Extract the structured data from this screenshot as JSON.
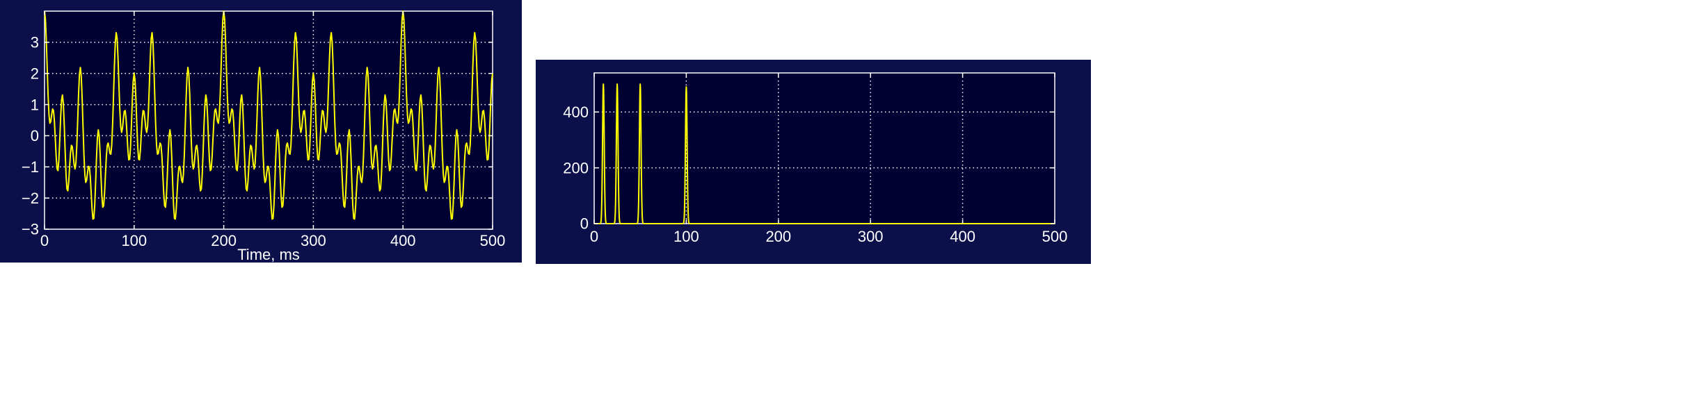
{
  "theme": {
    "figure_bg": "#0b0f4a",
    "axes_bg": "#000033",
    "line_color": "#ffff00",
    "grid_color": "#ffffff",
    "text_color": "#ffffff",
    "page_bg": "#ffffff"
  },
  "chart_data": [
    {
      "type": "line",
      "title": "",
      "xlabel": "Time, ms",
      "ylabel": "",
      "xlim": [
        0,
        500
      ],
      "ylim": [
        -3,
        4
      ],
      "grid": true,
      "x_ticks": [
        0,
        100,
        200,
        300,
        400,
        500
      ],
      "y_ticks": [
        -3,
        -2,
        -1,
        0,
        1,
        2,
        3
      ],
      "x_tick_labels": [
        "0",
        "100",
        "200",
        "300",
        "400",
        "500"
      ],
      "y_tick_labels": [
        "−3",
        "−2",
        "−1",
        "0",
        "1",
        "2",
        "3"
      ],
      "series": [
        {
          "components": [
            {
              "frequency_hz": 10,
              "amplitude": 1
            },
            {
              "frequency_hz": 25,
              "amplitude": 1
            },
            {
              "frequency_hz": 50,
              "amplitude": 1
            },
            {
              "frequency_hz": 100,
              "amplitude": 1
            }
          ],
          "sample_step_ms": 1
        }
      ]
    },
    {
      "type": "line",
      "title": "",
      "xlabel": "",
      "ylabel": "",
      "xlim": [
        0,
        500
      ],
      "ylim": [
        0,
        540
      ],
      "grid": true,
      "x_ticks": [
        0,
        100,
        200,
        300,
        400,
        500
      ],
      "y_ticks": [
        0,
        200,
        400
      ],
      "x_tick_labels": [
        "0",
        "100",
        "200",
        "300",
        "400",
        "500"
      ],
      "y_tick_labels": [
        "0",
        "200",
        "400"
      ],
      "series": [
        {
          "peaks": [
            {
              "x": 10,
              "y": 500
            },
            {
              "x": 25,
              "y": 500
            },
            {
              "x": 50,
              "y": 500
            },
            {
              "x": 100,
              "y": 490
            }
          ]
        }
      ]
    }
  ]
}
